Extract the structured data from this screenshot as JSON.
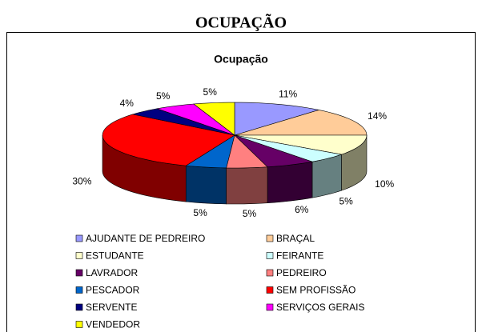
{
  "page_title": "OCUPAÇÃO",
  "chart_data": {
    "type": "pie",
    "title": "Ocupação",
    "categories": [
      "AJUDANTE DE PEDREIRO",
      "BRAÇAL",
      "ESTUDANTE",
      "FEIRANTE",
      "LAVRADOR",
      "PEDREIRO",
      "PESCADOR",
      "SEM PROFISSÃO",
      "SERVENTE",
      "SERVIÇOS GERAIS",
      "VENDEDOR"
    ],
    "values": [
      11,
      14,
      10,
      5,
      6,
      5,
      5,
      30,
      4,
      5,
      5
    ],
    "value_labels": [
      "11%",
      "14%",
      "10%",
      "5%",
      "6%",
      "5%",
      "5%",
      "30%",
      "4%",
      "5%",
      "5%"
    ],
    "colors": [
      "#9999ff",
      "#ffcc99",
      "#ffffcc",
      "#ccffff",
      "#660066",
      "#ff8080",
      "#0066cc",
      "#ff0000",
      "#000080",
      "#ff00ff",
      "#ffff00"
    ],
    "legend": "bottom"
  }
}
